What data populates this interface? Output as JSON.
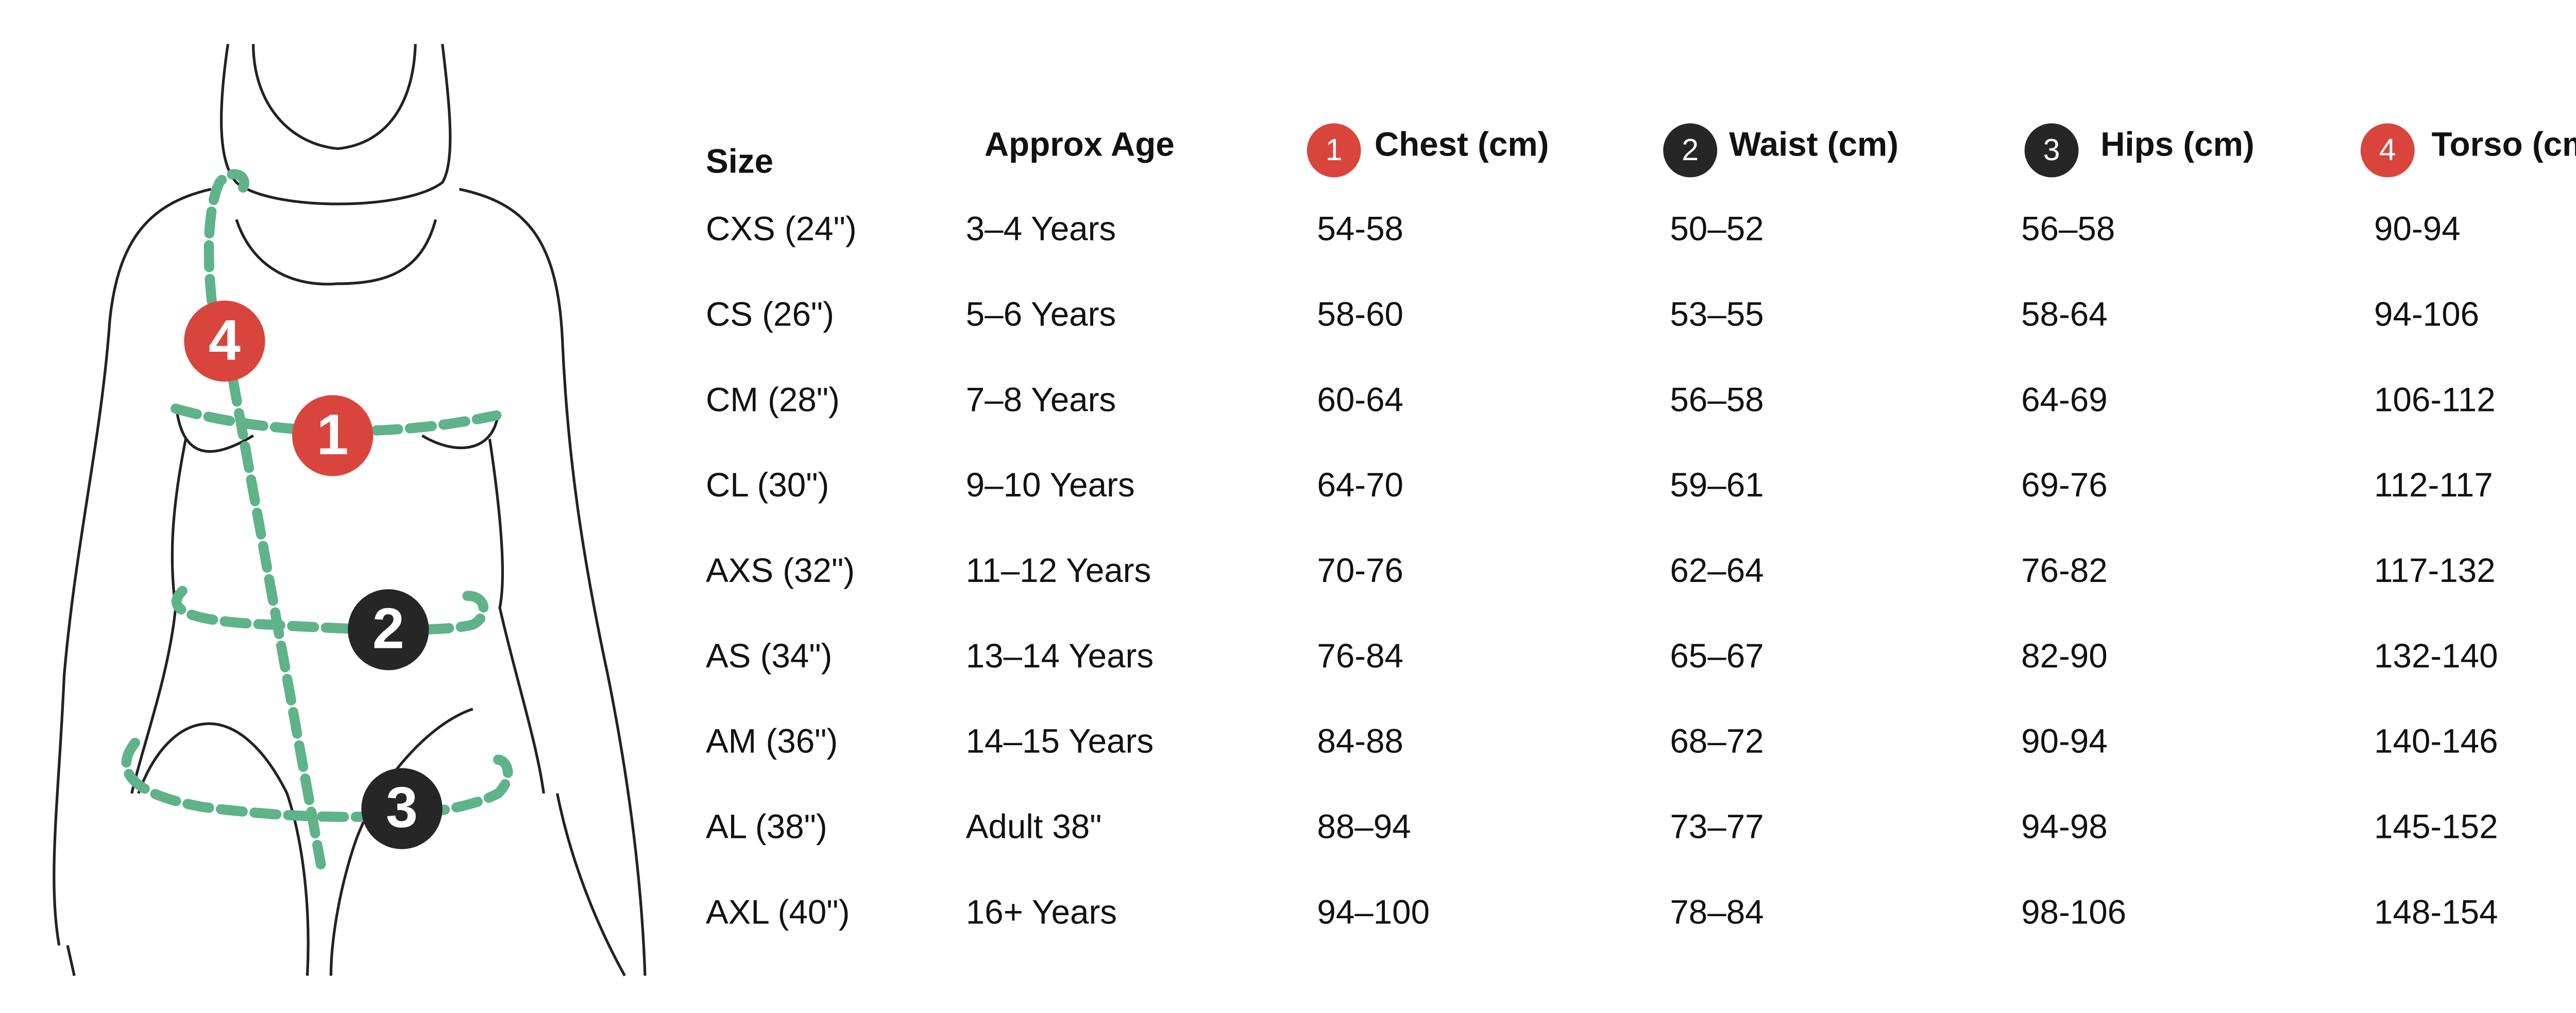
{
  "table": {
    "columns": [
      {
        "label": "Size"
      },
      {
        "label": "Approx Age"
      },
      {
        "badge": "1",
        "label": "Chest (cm)"
      },
      {
        "badge": "2",
        "label": "Waist (cm)"
      },
      {
        "badge": "3",
        "label": "Hips (cm)"
      },
      {
        "badge": "4",
        "label": "Torso (cm)"
      }
    ],
    "rows": [
      [
        "CXS (24\")",
        "3–4 Years",
        "54-58",
        "50–52",
        "56–58",
        "90-94"
      ],
      [
        "CS (26\")",
        "5–6 Years",
        "58-60",
        "53–55",
        "58-64",
        "94-106"
      ],
      [
        "CM (28\")",
        "7–8 Years",
        "60-64",
        "56–58",
        "64-69",
        "106-112"
      ],
      [
        "CL (30\")",
        "9–10 Years",
        "64-70",
        "59–61",
        "69-76",
        "112-117"
      ],
      [
        "AXS (32\")",
        "11–12 Years",
        "70-76",
        "62–64",
        "76-82",
        "117-132"
      ],
      [
        "AS (34\")",
        "13–14 Years",
        "76-84",
        "65–67",
        "82-90",
        "132-140"
      ],
      [
        "AM (36\")",
        "14–15 Years",
        "84-88",
        "68–72",
        "90-94",
        "140-146"
      ],
      [
        "AL (38\")",
        "Adult 38\"",
        "88–94",
        "73–77",
        "94-98",
        "145-152"
      ],
      [
        "AXL (40\")",
        "16+ Years",
        "94–100",
        "78–84",
        "98-106",
        "148-154"
      ]
    ]
  }
}
